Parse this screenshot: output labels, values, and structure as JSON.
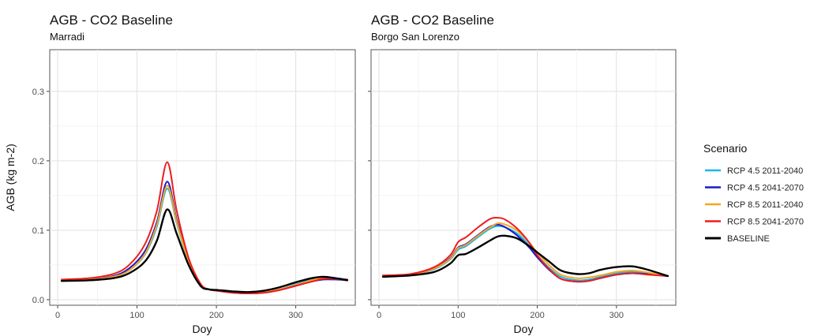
{
  "colors": {
    "rcp45_2011": "#1fb4e6",
    "rcp45_2041": "#1a1ac8",
    "rcp85_2011": "#f5a623",
    "rcp85_2041": "#ee1c1c",
    "baseline": "#000000"
  },
  "legend": {
    "title": "Scenario",
    "entries": [
      "RCP 4.5 2011-2040",
      "RCP 4.5 2041-2070",
      "RCP 8.5 2011-2040",
      "RCP 8.5 2041-2070",
      "BASELINE"
    ]
  },
  "chart_data": [
    {
      "type": "line",
      "title": "AGB - CO2 Baseline",
      "subtitle": "Marradi",
      "xlabel": "Doy",
      "ylabel": "AGB (kg m-2)",
      "xlim": [
        -10,
        375
      ],
      "ylim": [
        -0.008,
        0.36
      ],
      "xticks": [
        0,
        100,
        200,
        300
      ],
      "yticks": [
        0.0,
        0.1,
        0.2,
        0.3
      ],
      "grid": true,
      "series": [
        {
          "name": "RCP 4.5 2011-2040",
          "color_key": "rcp45_2011",
          "points": [
            [
              5,
              0.028
            ],
            [
              40,
              0.029
            ],
            [
              70,
              0.033
            ],
            [
              90,
              0.042
            ],
            [
              110,
              0.065
            ],
            [
              125,
              0.105
            ],
            [
              138,
              0.16
            ],
            [
              150,
              0.11
            ],
            [
              165,
              0.055
            ],
            [
              180,
              0.022
            ],
            [
              190,
              0.015
            ],
            [
              200,
              0.013
            ],
            [
              220,
              0.011
            ],
            [
              240,
              0.01
            ],
            [
              260,
              0.011
            ],
            [
              280,
              0.015
            ],
            [
              300,
              0.022
            ],
            [
              320,
              0.029
            ],
            [
              335,
              0.032
            ],
            [
              350,
              0.031
            ],
            [
              365,
              0.029
            ]
          ]
        },
        {
          "name": "RCP 4.5 2041-2070",
          "color_key": "rcp45_2041",
          "points": [
            [
              5,
              0.028
            ],
            [
              40,
              0.029
            ],
            [
              70,
              0.034
            ],
            [
              90,
              0.045
            ],
            [
              110,
              0.07
            ],
            [
              125,
              0.112
            ],
            [
              138,
              0.17
            ],
            [
              150,
              0.115
            ],
            [
              165,
              0.057
            ],
            [
              180,
              0.022
            ],
            [
              190,
              0.015
            ],
            [
              200,
              0.013
            ],
            [
              220,
              0.01
            ],
            [
              240,
              0.009
            ],
            [
              260,
              0.01
            ],
            [
              280,
              0.014
            ],
            [
              300,
              0.02
            ],
            [
              320,
              0.026
            ],
            [
              335,
              0.029
            ],
            [
              350,
              0.029
            ],
            [
              365,
              0.028
            ]
          ]
        },
        {
          "name": "RCP 8.5 2011-2040",
          "color_key": "rcp85_2011",
          "points": [
            [
              5,
              0.028
            ],
            [
              40,
              0.029
            ],
            [
              70,
              0.033
            ],
            [
              90,
              0.042
            ],
            [
              110,
              0.066
            ],
            [
              125,
              0.108
            ],
            [
              138,
              0.164
            ],
            [
              150,
              0.112
            ],
            [
              165,
              0.056
            ],
            [
              180,
              0.022
            ],
            [
              190,
              0.015
            ],
            [
              200,
              0.013
            ],
            [
              220,
              0.011
            ],
            [
              240,
              0.01
            ],
            [
              260,
              0.011
            ],
            [
              280,
              0.015
            ],
            [
              300,
              0.021
            ],
            [
              320,
              0.028
            ],
            [
              335,
              0.031
            ],
            [
              350,
              0.03
            ],
            [
              365,
              0.029
            ]
          ]
        },
        {
          "name": "RCP 8.5 2041-2070",
          "color_key": "rcp85_2041",
          "points": [
            [
              5,
              0.029
            ],
            [
              40,
              0.031
            ],
            [
              70,
              0.037
            ],
            [
              90,
              0.05
            ],
            [
              110,
              0.08
            ],
            [
              125,
              0.128
            ],
            [
              138,
              0.198
            ],
            [
              150,
              0.128
            ],
            [
              165,
              0.06
            ],
            [
              180,
              0.023
            ],
            [
              190,
              0.015
            ],
            [
              200,
              0.013
            ],
            [
              220,
              0.01
            ],
            [
              240,
              0.009
            ],
            [
              260,
              0.01
            ],
            [
              280,
              0.014
            ],
            [
              300,
              0.02
            ],
            [
              320,
              0.026
            ],
            [
              335,
              0.03
            ],
            [
              350,
              0.03
            ],
            [
              365,
              0.029
            ]
          ]
        },
        {
          "name": "BASELINE",
          "color_key": "baseline",
          "points": [
            [
              5,
              0.027
            ],
            [
              40,
              0.028
            ],
            [
              70,
              0.031
            ],
            [
              90,
              0.038
            ],
            [
              110,
              0.055
            ],
            [
              125,
              0.085
            ],
            [
              138,
              0.13
            ],
            [
              150,
              0.095
            ],
            [
              165,
              0.05
            ],
            [
              180,
              0.02
            ],
            [
              190,
              0.015
            ],
            [
              200,
              0.014
            ],
            [
              220,
              0.012
            ],
            [
              240,
              0.011
            ],
            [
              260,
              0.013
            ],
            [
              280,
              0.018
            ],
            [
              300,
              0.025
            ],
            [
              320,
              0.031
            ],
            [
              335,
              0.033
            ],
            [
              350,
              0.031
            ],
            [
              365,
              0.028
            ]
          ]
        }
      ]
    },
    {
      "type": "line",
      "title": "AGB - CO2 Baseline",
      "subtitle": "Borgo San Lorenzo",
      "xlabel": "Doy",
      "ylabel": "",
      "xlim": [
        -10,
        375
      ],
      "ylim": [
        -0.008,
        0.36
      ],
      "xticks": [
        0,
        100,
        200,
        300
      ],
      "yticks": [
        0.0,
        0.1,
        0.2,
        0.3
      ],
      "grid": true,
      "series": [
        {
          "name": "RCP 4.5 2011-2040",
          "color_key": "rcp45_2011",
          "points": [
            [
              5,
              0.034
            ],
            [
              40,
              0.036
            ],
            [
              70,
              0.044
            ],
            [
              90,
              0.058
            ],
            [
              100,
              0.072
            ],
            [
              110,
              0.077
            ],
            [
              125,
              0.09
            ],
            [
              140,
              0.102
            ],
            [
              150,
              0.106
            ],
            [
              160,
              0.104
            ],
            [
              175,
              0.095
            ],
            [
              190,
              0.078
            ],
            [
              200,
              0.064
            ],
            [
              215,
              0.046
            ],
            [
              230,
              0.033
            ],
            [
              250,
              0.028
            ],
            [
              265,
              0.029
            ],
            [
              280,
              0.033
            ],
            [
              300,
              0.038
            ],
            [
              320,
              0.04
            ],
            [
              340,
              0.038
            ],
            [
              365,
              0.034
            ]
          ]
        },
        {
          "name": "RCP 4.5 2041-2070",
          "color_key": "rcp45_2041",
          "points": [
            [
              5,
              0.034
            ],
            [
              40,
              0.036
            ],
            [
              70,
              0.045
            ],
            [
              90,
              0.06
            ],
            [
              100,
              0.075
            ],
            [
              110,
              0.08
            ],
            [
              125,
              0.093
            ],
            [
              140,
              0.105
            ],
            [
              150,
              0.108
            ],
            [
              160,
              0.104
            ],
            [
              175,
              0.092
            ],
            [
              190,
              0.075
            ],
            [
              200,
              0.061
            ],
            [
              215,
              0.043
            ],
            [
              230,
              0.03
            ],
            [
              250,
              0.026
            ],
            [
              265,
              0.027
            ],
            [
              280,
              0.031
            ],
            [
              300,
              0.036
            ],
            [
              320,
              0.038
            ],
            [
              340,
              0.037
            ],
            [
              365,
              0.034
            ]
          ]
        },
        {
          "name": "RCP 8.5 2011-2040",
          "color_key": "rcp85_2011",
          "points": [
            [
              5,
              0.034
            ],
            [
              40,
              0.036
            ],
            [
              70,
              0.045
            ],
            [
              90,
              0.059
            ],
            [
              100,
              0.074
            ],
            [
              110,
              0.079
            ],
            [
              125,
              0.092
            ],
            [
              140,
              0.104
            ],
            [
              150,
              0.11
            ],
            [
              160,
              0.108
            ],
            [
              175,
              0.099
            ],
            [
              190,
              0.082
            ],
            [
              200,
              0.068
            ],
            [
              215,
              0.05
            ],
            [
              230,
              0.036
            ],
            [
              250,
              0.031
            ],
            [
              265,
              0.032
            ],
            [
              280,
              0.035
            ],
            [
              300,
              0.04
            ],
            [
              320,
              0.042
            ],
            [
              340,
              0.039
            ],
            [
              365,
              0.034
            ]
          ]
        },
        {
          "name": "RCP 8.5 2041-2070",
          "color_key": "rcp85_2041",
          "points": [
            [
              5,
              0.035
            ],
            [
              40,
              0.037
            ],
            [
              70,
              0.047
            ],
            [
              90,
              0.064
            ],
            [
              100,
              0.083
            ],
            [
              110,
              0.09
            ],
            [
              125,
              0.104
            ],
            [
              140,
              0.116
            ],
            [
              150,
              0.118
            ],
            [
              160,
              0.115
            ],
            [
              175,
              0.102
            ],
            [
              190,
              0.082
            ],
            [
              200,
              0.064
            ],
            [
              215,
              0.044
            ],
            [
              230,
              0.03
            ],
            [
              250,
              0.026
            ],
            [
              265,
              0.027
            ],
            [
              280,
              0.031
            ],
            [
              300,
              0.036
            ],
            [
              320,
              0.038
            ],
            [
              340,
              0.036
            ],
            [
              365,
              0.034
            ]
          ]
        },
        {
          "name": "BASELINE",
          "color_key": "baseline",
          "points": [
            [
              5,
              0.033
            ],
            [
              40,
              0.035
            ],
            [
              70,
              0.04
            ],
            [
              90,
              0.052
            ],
            [
              100,
              0.064
            ],
            [
              110,
              0.066
            ],
            [
              125,
              0.075
            ],
            [
              140,
              0.085
            ],
            [
              150,
              0.091
            ],
            [
              160,
              0.092
            ],
            [
              175,
              0.088
            ],
            [
              190,
              0.077
            ],
            [
              200,
              0.068
            ],
            [
              215,
              0.055
            ],
            [
              230,
              0.042
            ],
            [
              250,
              0.037
            ],
            [
              265,
              0.038
            ],
            [
              280,
              0.043
            ],
            [
              300,
              0.047
            ],
            [
              320,
              0.048
            ],
            [
              340,
              0.043
            ],
            [
              365,
              0.034
            ]
          ]
        }
      ]
    }
  ]
}
